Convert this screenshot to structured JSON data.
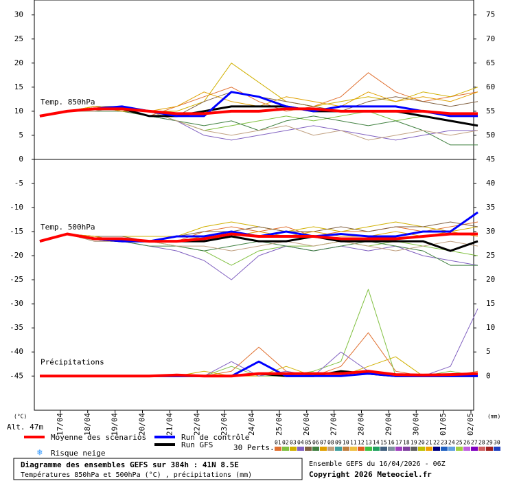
{
  "chart_data": {
    "type": "line",
    "y_unit": "(°C)",
    "y2_unit": "(mm)",
    "altitude": "Alt. 47m",
    "x": [
      0,
      24,
      48,
      72,
      96,
      120,
      144,
      168,
      192,
      216,
      240,
      264,
      288,
      312,
      336,
      360,
      384
    ],
    "xlim": [
      -4.8,
      380.4
    ],
    "xticks": [
      {
        "value": 18,
        "label": "17/04"
      },
      {
        "value": 42,
        "label": "18/04"
      },
      {
        "value": 66,
        "label": "19/04"
      },
      {
        "value": 90,
        "label": "20/04"
      },
      {
        "value": 114,
        "label": "21/04"
      },
      {
        "value": 138,
        "label": "22/04"
      },
      {
        "value": 162,
        "label": "23/04"
      },
      {
        "value": 186,
        "label": "24/04"
      },
      {
        "value": 210,
        "label": "25/04"
      },
      {
        "value": 234,
        "label": "26/04"
      },
      {
        "value": 258,
        "label": "27/04"
      },
      {
        "value": 282,
        "label": "28/04"
      },
      {
        "value": 306,
        "label": "29/04"
      },
      {
        "value": 330,
        "label": "30/04"
      },
      {
        "value": 354,
        "label": "01/05"
      },
      {
        "value": 378,
        "label": "02/05"
      }
    ],
    "ylim": [
      -52.1,
      33.1
    ],
    "yticks": [
      30,
      25,
      20,
      15,
      10,
      5,
      0,
      -5,
      -10,
      -15,
      -20,
      -25,
      -30,
      -35,
      -40,
      -45
    ],
    "y2lim": [
      -7.1,
      78.1
    ],
    "y2ticks": [
      75,
      70,
      65,
      60,
      55,
      50,
      45,
      40,
      35,
      30,
      25,
      20,
      15,
      10,
      5,
      0
    ],
    "grid": false,
    "legend": {
      "mean": {
        "label": "Moyenne des scénarios",
        "color": "#ff0000"
      },
      "control": {
        "label": "Run de contrôle",
        "color": "#0000ff"
      },
      "gfs": {
        "label": "Run GFS",
        "color": "#000000"
      },
      "snow": "Risque neige",
      "perts": "30 Perts."
    },
    "panels": [
      {
        "label": "Temp. 850hPa",
        "axis": "y",
        "mean": [
          9,
          10,
          10.5,
          10.5,
          10,
          9.5,
          9.5,
          10,
          10,
          10.5,
          10.5,
          10,
          10,
          10,
          10,
          9.5,
          9.5
        ],
        "control": [
          9,
          10,
          10.5,
          11,
          10,
          9,
          9,
          14,
          13,
          11,
          10,
          11,
          11,
          11,
          10,
          9,
          9
        ],
        "gfs": [
          9,
          10,
          10.5,
          10.5,
          9,
          9,
          10,
          11,
          11,
          11,
          10,
          10,
          10,
          10,
          9,
          8,
          7
        ]
      },
      {
        "label": "Temp. 500hPa",
        "axis": "y",
        "mean": [
          -17,
          -15.5,
          -16.5,
          -16.5,
          -17,
          -17,
          -16.5,
          -15.5,
          -16,
          -16,
          -16,
          -16.5,
          -16.5,
          -16.5,
          -16,
          -15.5,
          -15.5
        ],
        "control": [
          -17,
          -15.5,
          -16.5,
          -17,
          -17,
          -16,
          -16,
          -15,
          -16,
          -15,
          -16,
          -15.5,
          -16,
          -16,
          -15,
          -15,
          -11
        ],
        "gfs": [
          -17,
          -15.5,
          -16.5,
          -17,
          -17,
          -17,
          -17,
          -16,
          -17,
          -17,
          -16,
          -17,
          -17,
          -17,
          -17,
          -19,
          -17
        ]
      },
      {
        "label": "Précipitations",
        "axis": "y2",
        "mean": [
          0,
          0,
          0,
          0,
          0,
          0.2,
          0,
          0,
          0.5,
          0.5,
          0.5,
          0.5,
          1,
          0.3,
          0.2,
          0.3,
          0.5
        ],
        "control": [
          0,
          0,
          0,
          0,
          0,
          0,
          0,
          0,
          3,
          0,
          0,
          0,
          0.5,
          0,
          0,
          0,
          0
        ],
        "gfs": [
          0,
          0,
          0,
          0,
          0,
          0,
          0,
          0,
          0.5,
          0,
          0,
          1,
          0.5,
          0,
          0,
          0,
          0
        ]
      }
    ],
    "members": [
      {
        "label": "01",
        "color": "#e07030",
        "t850": [
          9,
          10,
          11,
          10,
          9,
          11,
          13,
          15,
          12,
          10,
          11,
          13,
          18,
          14,
          12,
          13,
          14
        ],
        "t500": [
          -17,
          -15.5,
          -16,
          -17,
          -17,
          -17,
          -15,
          -14,
          -15,
          -14,
          -16,
          -15,
          -15,
          -14,
          -15,
          -14,
          -13
        ],
        "precip": [
          0,
          0,
          0,
          0,
          0,
          0,
          0,
          1,
          6,
          1,
          0,
          2,
          9,
          1,
          0,
          0,
          1
        ]
      },
      {
        "label": "02",
        "color": "#80c040",
        "t850": [
          9,
          10,
          10,
          11,
          10,
          8,
          6,
          7,
          8,
          9,
          8,
          9,
          10,
          8,
          9,
          8,
          7
        ],
        "t500": [
          -17,
          -15.5,
          -16.5,
          -17,
          -17,
          -18,
          -19,
          -22,
          -19,
          -18,
          -18,
          -17,
          -18,
          -17,
          -18,
          -19,
          -20
        ],
        "precip": [
          0,
          0,
          0,
          0,
          0,
          0,
          0,
          2,
          0,
          0,
          1,
          3,
          18,
          0,
          0,
          1,
          0
        ]
      },
      {
        "label": "03",
        "color": "#d0b000",
        "t850": [
          9,
          10,
          11,
          10,
          10,
          10,
          12,
          20,
          16,
          12,
          11,
          12,
          13,
          12,
          14,
          13,
          15
        ],
        "t500": [
          -17,
          -15.5,
          -16,
          -16,
          -16,
          -16,
          -14,
          -13,
          -14,
          -15,
          -14,
          -15,
          -14,
          -13,
          -14,
          -15,
          -14
        ],
        "precip": [
          0,
          0,
          0,
          0,
          0,
          0,
          1,
          0,
          0,
          2,
          0,
          0,
          2,
          4,
          0,
          0,
          0
        ]
      },
      {
        "label": "04",
        "color": "#8060c0",
        "t850": [
          9,
          10,
          10,
          11,
          9,
          8,
          5,
          4,
          5,
          6,
          7,
          6,
          5,
          4,
          5,
          6,
          6
        ],
        "t500": [
          -17,
          -15.5,
          -17,
          -17,
          -18,
          -19,
          -21,
          -25,
          -20,
          -18,
          -19,
          -18,
          -19,
          -18,
          -20,
          -21,
          -22
        ],
        "precip": [
          0,
          0,
          0,
          0,
          0,
          0,
          0,
          3,
          0,
          1,
          0,
          5,
          1,
          0,
          0,
          2,
          14
        ]
      },
      {
        "label": "05",
        "color": "#806040",
        "t850": [
          9,
          10,
          11,
          11,
          10,
          9,
          12,
          14,
          13,
          12,
          11,
          10,
          12,
          13,
          12,
          11,
          12
        ],
        "t500": [
          -17,
          -15.5,
          -16,
          -16,
          -17,
          -16,
          -15,
          -15,
          -14,
          -15,
          -15,
          -14,
          -15,
          -14,
          -14,
          -13,
          -14
        ]
      },
      {
        "label": "06",
        "color": "#408040",
        "t850": [
          9,
          10,
          10,
          10,
          9,
          8,
          7,
          8,
          6,
          8,
          9,
          8,
          7,
          8,
          6,
          3,
          3
        ],
        "t500": [
          -17,
          -15.5,
          -17,
          -17,
          -18,
          -18,
          -19,
          -18,
          -17,
          -18,
          -19,
          -18,
          -17,
          -18,
          -19,
          -22,
          -22
        ]
      },
      {
        "label": "07",
        "color": "#e0a000",
        "t850": [
          9,
          10,
          11,
          10,
          10,
          11,
          14,
          12,
          11,
          13,
          12,
          11,
          14,
          12,
          13,
          12,
          14
        ],
        "t500": [
          -17,
          -15.5,
          -16,
          -17,
          -17,
          -17,
          -16,
          -16,
          -15,
          -16,
          -15,
          -16,
          -16,
          -15,
          -16,
          -15,
          -16
        ]
      },
      {
        "label": "08",
        "color": "#c0a080",
        "t850": [
          9,
          10,
          10,
          11,
          10,
          8,
          6,
          5,
          6,
          7,
          5,
          6,
          4,
          5,
          6,
          5,
          6
        ],
        "t500": [
          -17,
          -15.5,
          -17,
          -17,
          -17,
          -18,
          -18,
          -19,
          -18,
          -17,
          -18,
          -17,
          -18,
          -19,
          -18,
          -17,
          -18
        ]
      },
      {
        "label": "09",
        "color": "#40a0a0"
      },
      {
        "label": "10",
        "color": "#c08040"
      },
      {
        "label": "11",
        "color": "#f0c040"
      },
      {
        "label": "12",
        "color": "#e06020"
      },
      {
        "label": "13",
        "color": "#40c040"
      },
      {
        "label": "14",
        "color": "#20a060"
      },
      {
        "label": "15",
        "color": "#406080"
      },
      {
        "label": "16",
        "color": "#8090a0"
      },
      {
        "label": "17",
        "color": "#a040c0"
      },
      {
        "label": "18",
        "color": "#8040a0"
      },
      {
        "label": "19",
        "color": "#606060"
      },
      {
        "label": "20",
        "color": "#c0c000"
      },
      {
        "label": "21",
        "color": "#f0a000"
      },
      {
        "label": "22",
        "color": "#000080"
      },
      {
        "label": "23",
        "color": "#2060c0"
      },
      {
        "label": "24",
        "color": "#60a0e0"
      },
      {
        "label": "25",
        "color": "#a0d040"
      },
      {
        "label": "26",
        "color": "#c060e0"
      },
      {
        "label": "27",
        "color": "#8000c0"
      },
      {
        "label": "28",
        "color": "#d06060"
      },
      {
        "label": "29",
        "color": "#a02020"
      },
      {
        "label": "30",
        "color": "#2040c0"
      }
    ]
  },
  "footer": {
    "title": "Diagramme des ensembles GEFS sur 384h : 41N 8.5E",
    "subtitle": "Températures 850hPa et 500hPa (°C) , précipitations (mm)",
    "run": "Ensemble GEFS du 16/04/2026 - 06Z",
    "copyright": "Copyright 2026 Meteociel.fr"
  }
}
